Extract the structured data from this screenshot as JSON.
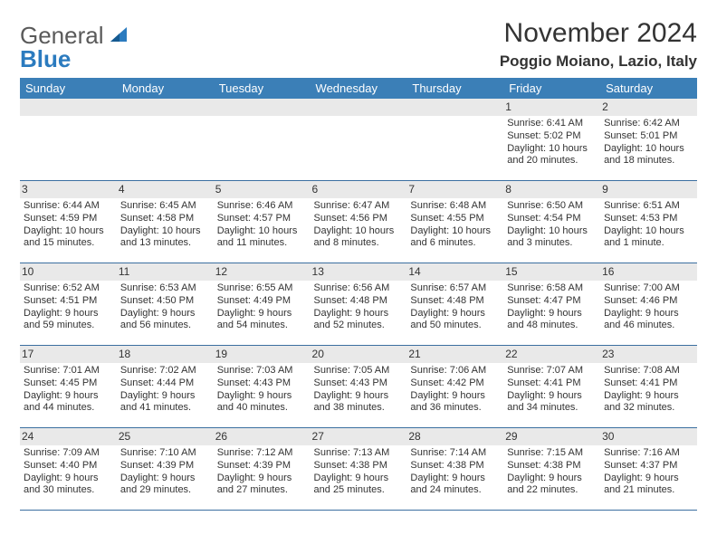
{
  "brand": {
    "part1": "General",
    "part2": "Blue"
  },
  "title": "November 2024",
  "location": "Poggio Moiano, Lazio, Italy",
  "colors": {
    "header_bg": "#3b7fb7",
    "row_sep": "#3b6fa0",
    "day_bg": "#e9e9e9",
    "brand_blue": "#2b7bbf",
    "text": "#333333"
  },
  "weekdays": [
    "Sunday",
    "Monday",
    "Tuesday",
    "Wednesday",
    "Thursday",
    "Friday",
    "Saturday"
  ],
  "weeks": [
    [
      {
        "n": "",
        "sr": "",
        "ss": "",
        "dl": ""
      },
      {
        "n": "",
        "sr": "",
        "ss": "",
        "dl": ""
      },
      {
        "n": "",
        "sr": "",
        "ss": "",
        "dl": ""
      },
      {
        "n": "",
        "sr": "",
        "ss": "",
        "dl": ""
      },
      {
        "n": "",
        "sr": "",
        "ss": "",
        "dl": ""
      },
      {
        "n": "1",
        "sr": "Sunrise: 6:41 AM",
        "ss": "Sunset: 5:02 PM",
        "dl": "Daylight: 10 hours and 20 minutes."
      },
      {
        "n": "2",
        "sr": "Sunrise: 6:42 AM",
        "ss": "Sunset: 5:01 PM",
        "dl": "Daylight: 10 hours and 18 minutes."
      }
    ],
    [
      {
        "n": "3",
        "sr": "Sunrise: 6:44 AM",
        "ss": "Sunset: 4:59 PM",
        "dl": "Daylight: 10 hours and 15 minutes."
      },
      {
        "n": "4",
        "sr": "Sunrise: 6:45 AM",
        "ss": "Sunset: 4:58 PM",
        "dl": "Daylight: 10 hours and 13 minutes."
      },
      {
        "n": "5",
        "sr": "Sunrise: 6:46 AM",
        "ss": "Sunset: 4:57 PM",
        "dl": "Daylight: 10 hours and 11 minutes."
      },
      {
        "n": "6",
        "sr": "Sunrise: 6:47 AM",
        "ss": "Sunset: 4:56 PM",
        "dl": "Daylight: 10 hours and 8 minutes."
      },
      {
        "n": "7",
        "sr": "Sunrise: 6:48 AM",
        "ss": "Sunset: 4:55 PM",
        "dl": "Daylight: 10 hours and 6 minutes."
      },
      {
        "n": "8",
        "sr": "Sunrise: 6:50 AM",
        "ss": "Sunset: 4:54 PM",
        "dl": "Daylight: 10 hours and 3 minutes."
      },
      {
        "n": "9",
        "sr": "Sunrise: 6:51 AM",
        "ss": "Sunset: 4:53 PM",
        "dl": "Daylight: 10 hours and 1 minute."
      }
    ],
    [
      {
        "n": "10",
        "sr": "Sunrise: 6:52 AM",
        "ss": "Sunset: 4:51 PM",
        "dl": "Daylight: 9 hours and 59 minutes."
      },
      {
        "n": "11",
        "sr": "Sunrise: 6:53 AM",
        "ss": "Sunset: 4:50 PM",
        "dl": "Daylight: 9 hours and 56 minutes."
      },
      {
        "n": "12",
        "sr": "Sunrise: 6:55 AM",
        "ss": "Sunset: 4:49 PM",
        "dl": "Daylight: 9 hours and 54 minutes."
      },
      {
        "n": "13",
        "sr": "Sunrise: 6:56 AM",
        "ss": "Sunset: 4:48 PM",
        "dl": "Daylight: 9 hours and 52 minutes."
      },
      {
        "n": "14",
        "sr": "Sunrise: 6:57 AM",
        "ss": "Sunset: 4:48 PM",
        "dl": "Daylight: 9 hours and 50 minutes."
      },
      {
        "n": "15",
        "sr": "Sunrise: 6:58 AM",
        "ss": "Sunset: 4:47 PM",
        "dl": "Daylight: 9 hours and 48 minutes."
      },
      {
        "n": "16",
        "sr": "Sunrise: 7:00 AM",
        "ss": "Sunset: 4:46 PM",
        "dl": "Daylight: 9 hours and 46 minutes."
      }
    ],
    [
      {
        "n": "17",
        "sr": "Sunrise: 7:01 AM",
        "ss": "Sunset: 4:45 PM",
        "dl": "Daylight: 9 hours and 44 minutes."
      },
      {
        "n": "18",
        "sr": "Sunrise: 7:02 AM",
        "ss": "Sunset: 4:44 PM",
        "dl": "Daylight: 9 hours and 41 minutes."
      },
      {
        "n": "19",
        "sr": "Sunrise: 7:03 AM",
        "ss": "Sunset: 4:43 PM",
        "dl": "Daylight: 9 hours and 40 minutes."
      },
      {
        "n": "20",
        "sr": "Sunrise: 7:05 AM",
        "ss": "Sunset: 4:43 PM",
        "dl": "Daylight: 9 hours and 38 minutes."
      },
      {
        "n": "21",
        "sr": "Sunrise: 7:06 AM",
        "ss": "Sunset: 4:42 PM",
        "dl": "Daylight: 9 hours and 36 minutes."
      },
      {
        "n": "22",
        "sr": "Sunrise: 7:07 AM",
        "ss": "Sunset: 4:41 PM",
        "dl": "Daylight: 9 hours and 34 minutes."
      },
      {
        "n": "23",
        "sr": "Sunrise: 7:08 AM",
        "ss": "Sunset: 4:41 PM",
        "dl": "Daylight: 9 hours and 32 minutes."
      }
    ],
    [
      {
        "n": "24",
        "sr": "Sunrise: 7:09 AM",
        "ss": "Sunset: 4:40 PM",
        "dl": "Daylight: 9 hours and 30 minutes."
      },
      {
        "n": "25",
        "sr": "Sunrise: 7:10 AM",
        "ss": "Sunset: 4:39 PM",
        "dl": "Daylight: 9 hours and 29 minutes."
      },
      {
        "n": "26",
        "sr": "Sunrise: 7:12 AM",
        "ss": "Sunset: 4:39 PM",
        "dl": "Daylight: 9 hours and 27 minutes."
      },
      {
        "n": "27",
        "sr": "Sunrise: 7:13 AM",
        "ss": "Sunset: 4:38 PM",
        "dl": "Daylight: 9 hours and 25 minutes."
      },
      {
        "n": "28",
        "sr": "Sunrise: 7:14 AM",
        "ss": "Sunset: 4:38 PM",
        "dl": "Daylight: 9 hours and 24 minutes."
      },
      {
        "n": "29",
        "sr": "Sunrise: 7:15 AM",
        "ss": "Sunset: 4:38 PM",
        "dl": "Daylight: 9 hours and 22 minutes."
      },
      {
        "n": "30",
        "sr": "Sunrise: 7:16 AM",
        "ss": "Sunset: 4:37 PM",
        "dl": "Daylight: 9 hours and 21 minutes."
      }
    ]
  ]
}
